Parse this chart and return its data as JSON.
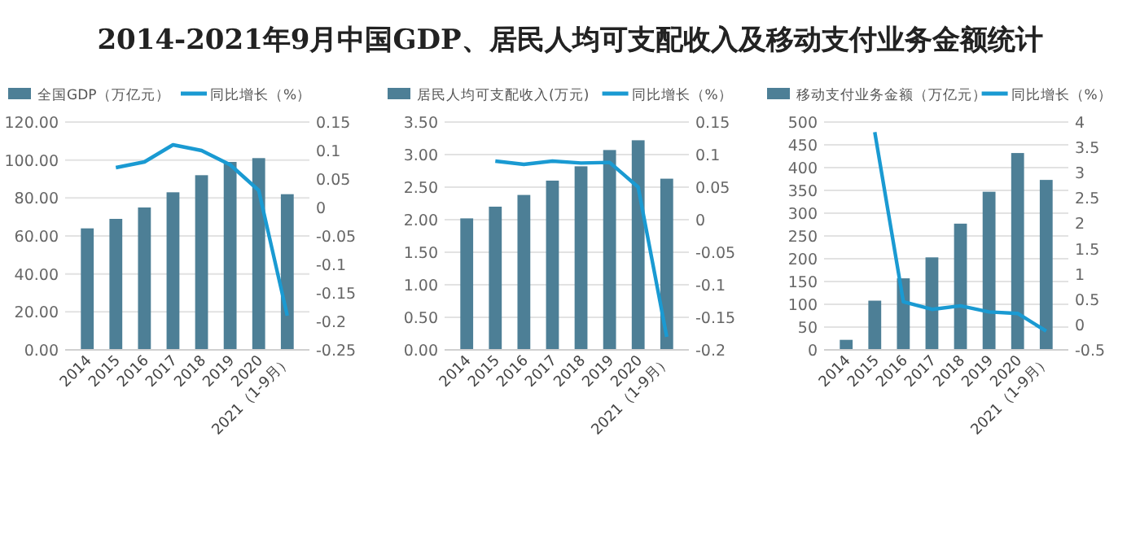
{
  "chart_data": [
    {
      "type": "bar",
      "title": "2014-2021年9月中国GDP、居民人均可支配收入及移动支付业务金额统计",
      "categories": [
        "2014",
        "2015",
        "2016",
        "2017",
        "2018",
        "2019",
        "2020",
        "2021（1-9月）"
      ],
      "legend": "top",
      "grid": "y",
      "series": [
        {
          "name": "全国GDP（万亿元）",
          "color": "#4d7f96",
          "values": [
            64,
            69,
            75,
            83,
            92,
            99,
            101,
            82
          ]
        },
        {
          "name": "同比增长（%）",
          "type": "line",
          "axis": "y2",
          "color": "#1a9ad2",
          "values": [
            null,
            0.07,
            0.08,
            0.11,
            0.1,
            0.075,
            0.03,
            -0.19
          ]
        }
      ],
      "ylim": [
        0,
        120
      ],
      "yticks": [
        {
          "value": 0,
          "label": "0.00"
        },
        {
          "value": 20,
          "label": "20.00"
        },
        {
          "value": 40,
          "label": "40.00"
        },
        {
          "value": 60,
          "label": "60.00"
        },
        {
          "value": 80,
          "label": "80.00"
        },
        {
          "value": 100,
          "label": "100.00"
        },
        {
          "value": 120,
          "label": "120.00"
        }
      ],
      "y2lim": [
        -0.25,
        0.15
      ],
      "y2ticks": [
        -0.25,
        -0.2,
        -0.15,
        -0.1,
        -0.05,
        0,
        0.05,
        0.1,
        0.15
      ]
    },
    {
      "type": "bar",
      "categories": [
        "2014",
        "2015",
        "2016",
        "2017",
        "2018",
        "2019",
        "2020",
        "2021（1-9月）"
      ],
      "legend": "top",
      "grid": "y",
      "series": [
        {
          "name": "居民人均可支配收入(万元)",
          "color": "#4d7f96",
          "values": [
            2.02,
            2.2,
            2.38,
            2.6,
            2.82,
            3.07,
            3.22,
            2.63
          ]
        },
        {
          "name": "同比增长（%）",
          "type": "line",
          "axis": "y2",
          "color": "#1a9ad2",
          "values": [
            null,
            0.09,
            0.085,
            0.09,
            0.087,
            0.088,
            0.05,
            -0.18
          ]
        }
      ],
      "ylim": [
        0,
        3.5
      ],
      "yticks": [
        {
          "value": 0,
          "label": "0.00"
        },
        {
          "value": 0.5,
          "label": "0.50"
        },
        {
          "value": 1,
          "label": "1.00"
        },
        {
          "value": 1.5,
          "label": "1.50"
        },
        {
          "value": 2,
          "label": "2.00"
        },
        {
          "value": 2.5,
          "label": "2.50"
        },
        {
          "value": 3,
          "label": "3.00"
        },
        {
          "value": 3.5,
          "label": "3.50"
        }
      ],
      "y2lim": [
        -0.2,
        0.15
      ],
      "y2ticks": [
        -0.2,
        -0.15,
        -0.1,
        -0.05,
        0,
        0.05,
        0.1,
        0.15
      ]
    },
    {
      "type": "bar",
      "categories": [
        "2014",
        "2015",
        "2016",
        "2017",
        "2018",
        "2019",
        "2020",
        "2021（1-9月）"
      ],
      "legend": "top",
      "grid": "y",
      "series": [
        {
          "name": "移动支付业务金额（万亿元）",
          "color": "#4d7f96",
          "values": [
            22,
            108,
            157,
            203,
            277,
            347,
            432,
            373
          ]
        },
        {
          "name": "同比增长（%）",
          "type": "line",
          "axis": "y2",
          "color": "#1a9ad2",
          "values": [
            null,
            3.8,
            0.45,
            0.3,
            0.37,
            0.25,
            0.22,
            -0.13
          ]
        }
      ],
      "ylim": [
        0,
        500
      ],
      "yticks": [
        0,
        50,
        100,
        150,
        200,
        250,
        300,
        350,
        400,
        450,
        500
      ],
      "y2lim": [
        -0.5,
        4
      ],
      "y2ticks": [
        -0.5,
        0,
        0.5,
        1,
        1.5,
        2,
        2.5,
        3,
        3.5,
        4
      ]
    }
  ]
}
